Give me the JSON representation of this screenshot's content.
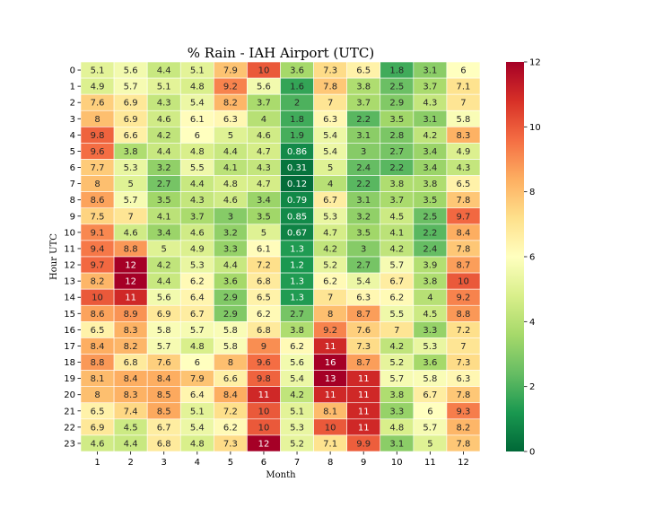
{
  "chart_data": {
    "type": "heatmap",
    "title": "% Rain - IAH Airport (UTC)",
    "xlabel": "Month",
    "ylabel": "Hour UTC",
    "x_categories": [
      "1",
      "2",
      "3",
      "4",
      "5",
      "6",
      "7",
      "8",
      "9",
      "10",
      "11",
      "12"
    ],
    "y_categories": [
      "0",
      "1",
      "2",
      "3",
      "4",
      "5",
      "6",
      "7",
      "8",
      "9",
      "10",
      "11",
      "12",
      "13",
      "14",
      "15",
      "16",
      "17",
      "18",
      "19",
      "20",
      "21",
      "22",
      "23"
    ],
    "colormap": "RdYlGn_r",
    "vmin": 0,
    "vmax": 12,
    "colorbar_ticks": [
      "0",
      "2",
      "4",
      "6",
      "8",
      "10",
      "12"
    ],
    "values": [
      [
        "5.1",
        "5.6",
        "4.4",
        "5.1",
        "7.9",
        "10",
        "3.6",
        "7.3",
        "6.5",
        "1.8",
        "3.1",
        "6"
      ],
      [
        "4.9",
        "5.7",
        "5.1",
        "4.8",
        "9.2",
        "5.6",
        "1.6",
        "7.8",
        "3.8",
        "2.5",
        "3.7",
        "7.1"
      ],
      [
        "7.6",
        "6.9",
        "4.3",
        "5.4",
        "8.2",
        "3.7",
        "2",
        "7",
        "3.7",
        "2.9",
        "4.3",
        "7"
      ],
      [
        "8",
        "6.9",
        "4.6",
        "6.1",
        "6.3",
        "4",
        "1.8",
        "6.3",
        "2.2",
        "3.5",
        "3.1",
        "5.8"
      ],
      [
        "9.8",
        "6.6",
        "4.2",
        "6",
        "5",
        "4.6",
        "1.9",
        "5.4",
        "3.1",
        "2.8",
        "4.2",
        "8.3"
      ],
      [
        "9.6",
        "3.8",
        "4.4",
        "4.8",
        "4.4",
        "4.7",
        "0.86",
        "5.4",
        "3",
        "2.7",
        "3.4",
        "4.9"
      ],
      [
        "7.7",
        "5.3",
        "3.2",
        "5.5",
        "4.1",
        "4.3",
        "0.31",
        "5",
        "2.4",
        "2.2",
        "3.4",
        "4.3"
      ],
      [
        "8",
        "5",
        "2.7",
        "4.4",
        "4.8",
        "4.7",
        "0.12",
        "4",
        "2.2",
        "3.8",
        "3.8",
        "6.5"
      ],
      [
        "8.6",
        "5.7",
        "3.5",
        "4.3",
        "4.6",
        "3.4",
        "0.79",
        "6.7",
        "3.1",
        "3.7",
        "3.5",
        "7.8"
      ],
      [
        "7.5",
        "7",
        "4.1",
        "3.7",
        "3",
        "3.5",
        "0.85",
        "5.3",
        "3.2",
        "4.5",
        "2.5",
        "9.7"
      ],
      [
        "9.1",
        "4.6",
        "3.4",
        "4.6",
        "3.2",
        "5",
        "0.67",
        "4.7",
        "3.5",
        "4.1",
        "2.2",
        "8.4"
      ],
      [
        "9.4",
        "8.8",
        "5",
        "4.9",
        "3.3",
        "6.1",
        "1.3",
        "4.2",
        "3",
        "4.2",
        "2.4",
        "7.8"
      ],
      [
        "9.7",
        "12",
        "4.2",
        "5.3",
        "4.4",
        "7.2",
        "1.2",
        "5.2",
        "2.7",
        "5.7",
        "3.9",
        "8.7"
      ],
      [
        "8.2",
        "12",
        "4.4",
        "6.2",
        "3.6",
        "6.8",
        "1.3",
        "6.2",
        "5.4",
        "6.7",
        "3.8",
        "10"
      ],
      [
        "10",
        "11",
        "5.6",
        "6.4",
        "2.9",
        "6.5",
        "1.3",
        "7",
        "6.3",
        "6.2",
        "4",
        "9.2"
      ],
      [
        "8.6",
        "8.9",
        "6.9",
        "6.7",
        "2.9",
        "6.2",
        "2.7",
        "8",
        "8.7",
        "5.5",
        "4.5",
        "8.8"
      ],
      [
        "6.5",
        "8.3",
        "5.8",
        "5.7",
        "5.8",
        "6.8",
        "3.8",
        "9.2",
        "7.6",
        "7",
        "3.3",
        "7.2"
      ],
      [
        "8.4",
        "8.2",
        "5.7",
        "4.8",
        "5.8",
        "9",
        "6.2",
        "11",
        "7.3",
        "4.2",
        "5.3",
        "7"
      ],
      [
        "8.8",
        "6.8",
        "7.6",
        "6",
        "8",
        "9.6",
        "5.6",
        "16",
        "8.7",
        "5.2",
        "3.6",
        "7.3"
      ],
      [
        "8.1",
        "8.4",
        "8.4",
        "7.9",
        "6.6",
        "9.8",
        "5.4",
        "13",
        "11",
        "5.7",
        "5.8",
        "6.3"
      ],
      [
        "8",
        "8.3",
        "8.5",
        "6.4",
        "8.4",
        "11",
        "4.2",
        "11",
        "11",
        "3.8",
        "6.7",
        "7.8"
      ],
      [
        "6.5",
        "7.4",
        "8.5",
        "5.1",
        "7.2",
        "10",
        "5.1",
        "8.1",
        "11",
        "3.3",
        "6",
        "9.3"
      ],
      [
        "6.9",
        "4.5",
        "6.7",
        "5.4",
        "6.2",
        "10",
        "5.3",
        "10",
        "11",
        "4.8",
        "5.7",
        "8.2"
      ],
      [
        "4.6",
        "4.4",
        "6.8",
        "4.8",
        "7.3",
        "12",
        "5.2",
        "7.1",
        "9.9",
        "3.1",
        "5",
        "7.8"
      ]
    ]
  }
}
